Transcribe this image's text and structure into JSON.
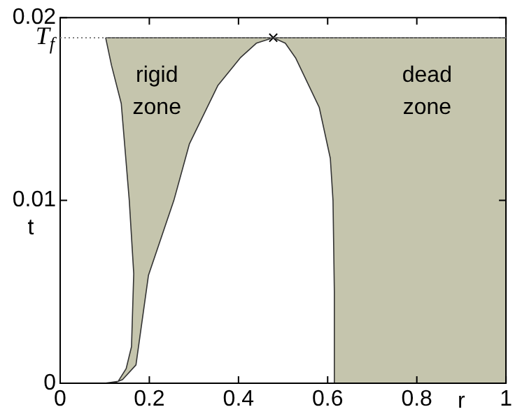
{
  "chart_data": {
    "type": "area",
    "xlabel": "r",
    "ylabel": "t",
    "xlim": [
      0,
      1
    ],
    "xticks": [
      0,
      0.2,
      0.4,
      0.6,
      0.8,
      1
    ],
    "ylim": [
      0,
      0.02
    ],
    "yticks": [
      0,
      0.01,
      0.02
    ],
    "grid": false,
    "legend": false,
    "series": [
      {
        "name": "rigid zone",
        "color": "#c5c5ad",
        "x": [
          0.102,
          0.2,
          0.3,
          0.4,
          0.478,
          0.44,
          0.404,
          0.354,
          0.29,
          0.255,
          0.198,
          0.17,
          0.14,
          0.12,
          0.1,
          0.13,
          0.148,
          0.16,
          0.165,
          0.155,
          0.137,
          0.115,
          0.102
        ],
        "values": [
          0.0189,
          0.0189,
          0.0189,
          0.0189,
          0.0189,
          0.0186,
          0.0178,
          0.0163,
          0.0131,
          0.01,
          0.0059,
          0.001,
          0.0002,
          0,
          0,
          0.0001,
          0.0008,
          0.002,
          0.006,
          0.01,
          0.0153,
          0.0174,
          0.0189
        ]
      },
      {
        "name": "dead zone",
        "color": "#c5c5ad",
        "x": [
          0.478,
          0.505,
          0.528,
          0.581,
          0.606,
          0.612,
          0.615,
          0.615,
          1,
          1,
          0.478
        ],
        "values": [
          0.0189,
          0.0186,
          0.0178,
          0.0151,
          0.0123,
          0.01,
          0.005,
          0,
          0,
          0.0189,
          0.0189
        ]
      },
      {
        "type": "scatter",
        "color": "#000000",
        "marker": "cross",
        "x": [
          0.478
        ],
        "values": [
          0.0189
        ]
      }
    ],
    "ref_lines": [
      {
        "axis": "y",
        "value": 0.0189,
        "label": "T$_{f}$",
        "line_style": "dotted",
        "color": "#808080"
      }
    ]
  }
}
